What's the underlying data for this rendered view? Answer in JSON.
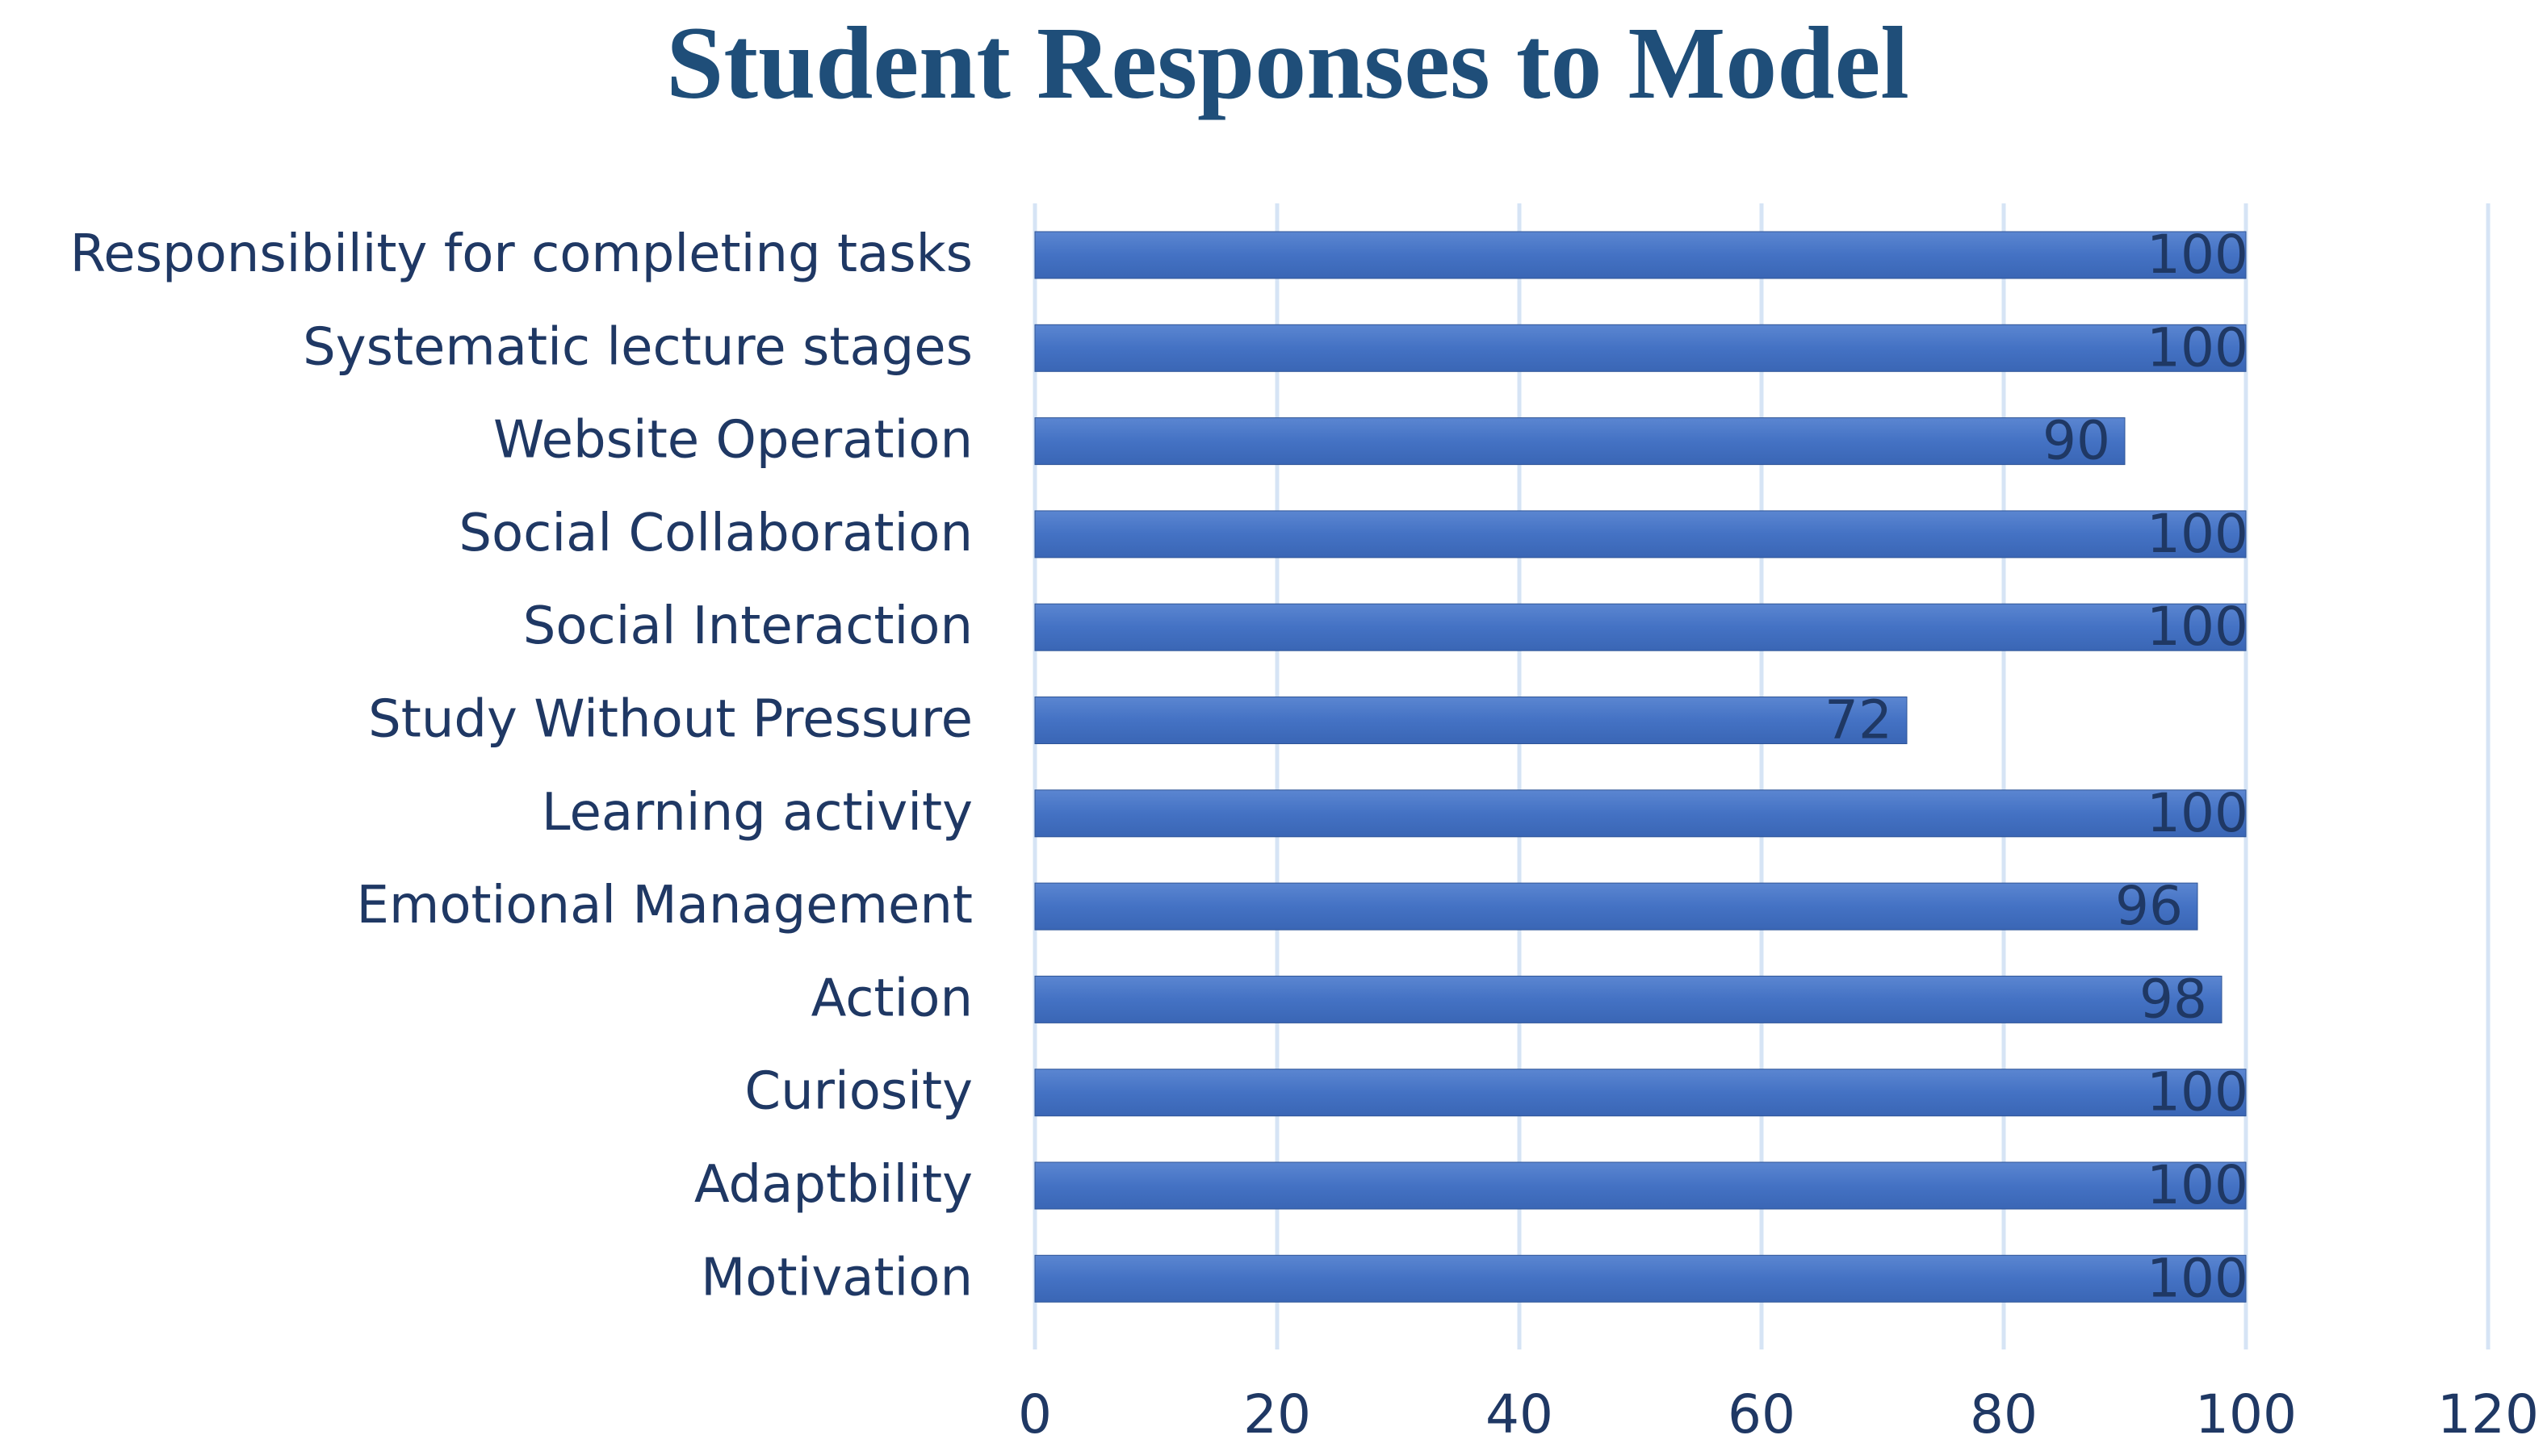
{
  "chart_data": {
    "type": "bar",
    "orientation": "horizontal",
    "title": "Student Responses to Model",
    "xlabel": "",
    "ylabel": "",
    "categories": [
      "Responsibility for completing tasks",
      "Systematic lecture stages",
      "Website Operation",
      "Social Collaboration",
      "Social Interaction",
      "Study Without Pressure",
      "Learning activity",
      "Emotional Management",
      "Action",
      "Curiosity",
      "Adaptbility",
      "Motivation"
    ],
    "values": [
      100,
      100,
      90,
      100,
      100,
      72,
      100,
      96,
      98,
      100,
      100,
      100
    ],
    "xlim": [
      0,
      120
    ],
    "xticks": [
      0,
      20,
      40,
      60,
      80,
      100,
      120
    ],
    "grid": true,
    "legend": "none",
    "data_labels": true
  },
  "colors": {
    "bar": "#4472c4",
    "bar_edge": "#2f5597",
    "grid": "#d6e4f5",
    "text": "#1f3864",
    "title": "#1f4e79",
    "data_label": "#1f3864"
  }
}
